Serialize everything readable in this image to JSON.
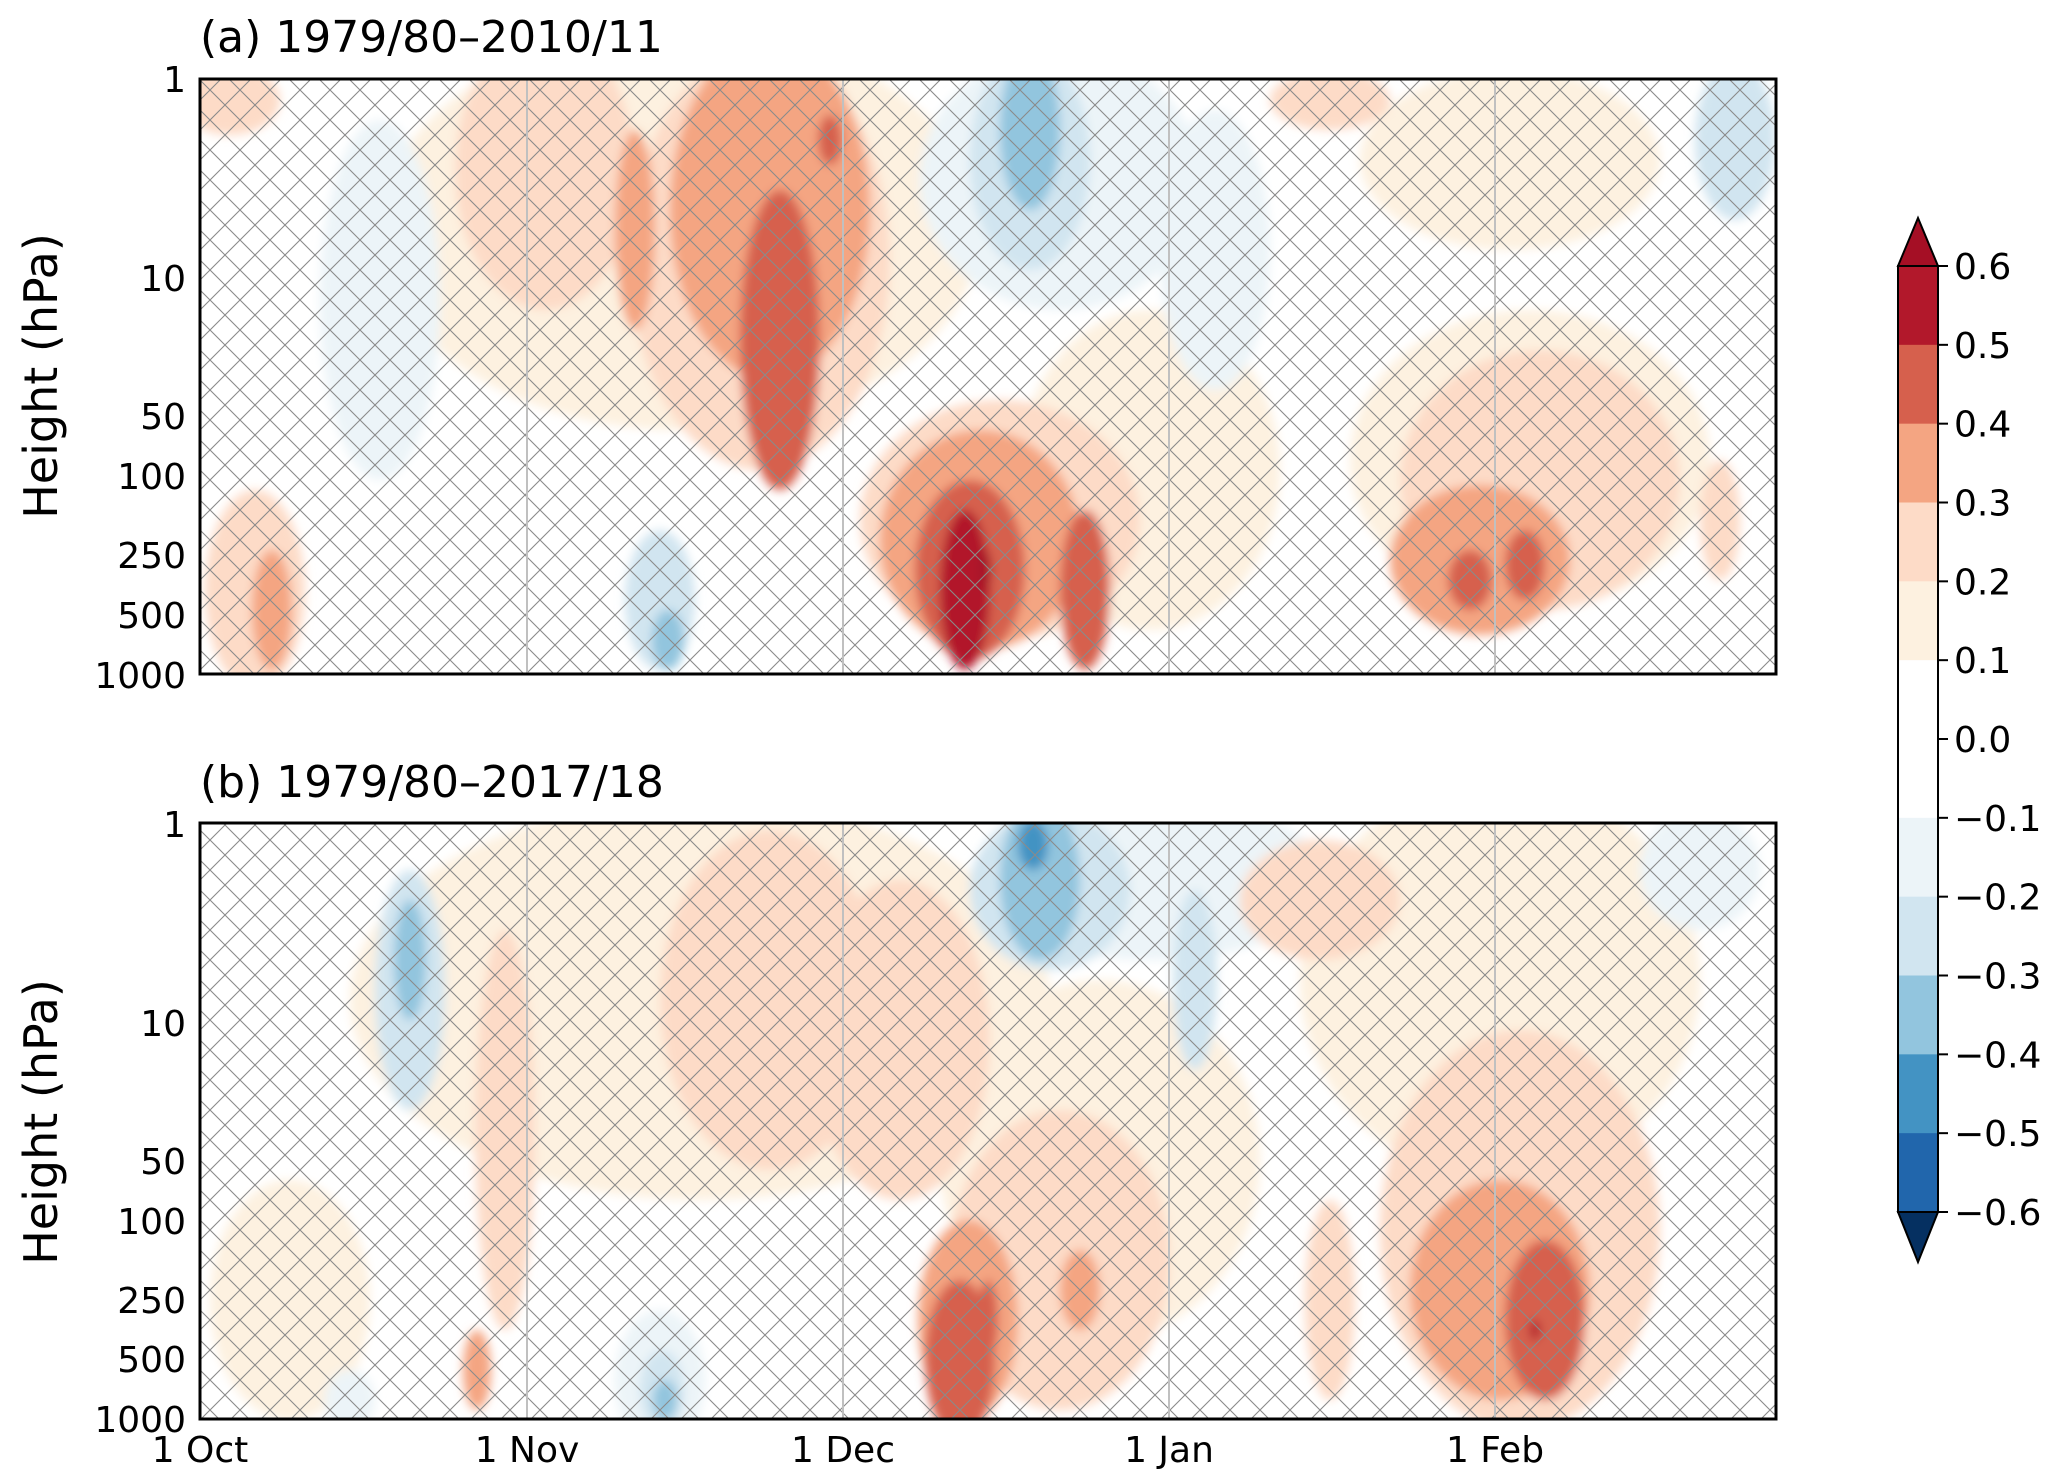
{
  "chart_data": [
    {
      "type": "heatmap",
      "title": "(a) 1979/80–2010/11",
      "ylabel": "Height (hPa)",
      "xlabel": "",
      "y_scale": "log",
      "y_inverted": true,
      "yticks": [
        1,
        10,
        50,
        100,
        250,
        500,
        1000
      ],
      "ylim": [
        1000,
        1
      ],
      "x_range_days": [
        0,
        150
      ],
      "month_boundaries": [
        "1 Oct",
        "1 Nov",
        "1 Dec",
        "1 Jan",
        "1 Feb"
      ],
      "hatching": "cross-hatched where not significant (most of domain)",
      "features": [
        {
          "description": "positive max near mid-Dec in troposphere",
          "day": 74,
          "pressure": 300,
          "value": 0.6
        },
        {
          "description": "positive band late Nov stratosphere",
          "day": 53,
          "pressure": 20,
          "value": 0.45
        },
        {
          "description": "positive max early Feb troposphere",
          "day": 124,
          "pressure": 250,
          "value": 0.45
        },
        {
          "description": "negative near 1 hPa mid-Dec",
          "day": 77,
          "pressure": 2,
          "value": -0.35
        },
        {
          "description": "negative late Feb upper stratosphere",
          "day": 146,
          "pressure": 2,
          "value": -0.25
        }
      ]
    },
    {
      "type": "heatmap",
      "title": "(b) 1979/80–2017/18",
      "ylabel": "Height (hPa)",
      "xlabel": "",
      "y_scale": "log",
      "y_inverted": true,
      "yticks": [
        1,
        10,
        50,
        100,
        250,
        500,
        1000
      ],
      "ylim": [
        1000,
        1
      ],
      "x_range_days": [
        0,
        150
      ],
      "xticklabels": [
        "1 Oct",
        "1 Nov",
        "1 Dec",
        "1 Jan",
        "1 Feb"
      ],
      "hatching": "cross-hatched where not significant (most of domain)",
      "features": [
        {
          "description": "positive max early Feb troposphere",
          "day": 127,
          "pressure": 400,
          "value": 0.5
        },
        {
          "description": "positive mid-Dec troposphere",
          "day": 74,
          "pressure": 600,
          "value": 0.45
        },
        {
          "description": "negative near 1 hPa mid-Dec",
          "day": 79,
          "pressure": 1.5,
          "value": -0.45
        },
        {
          "description": "negative mid-Oct stratosphere",
          "day": 20,
          "pressure": 8,
          "value": -0.25
        }
      ]
    }
  ],
  "colorbar": {
    "ticks": [
      "0.6",
      "0.5",
      "0.4",
      "0.3",
      "0.2",
      "0.1",
      "0.0",
      "−0.1",
      "−0.2",
      "−0.3",
      "−0.4",
      "−0.5",
      "−0.6"
    ],
    "colors_top_to_bottom": [
      "#a50f25",
      "#b2182b",
      "#d6604d",
      "#f4a582",
      "#fddbc7",
      "#fdf1e0",
      "#ffffff",
      "#ffffff",
      "#ecf4f8",
      "#d1e5f0",
      "#92c5de",
      "#4393c3",
      "#2166ac",
      "#053061"
    ],
    "extend": "both"
  },
  "colors": {
    "hatch": "#8a8a8a",
    "month_lines": "#c0c0c0",
    "frame": "#000000"
  }
}
